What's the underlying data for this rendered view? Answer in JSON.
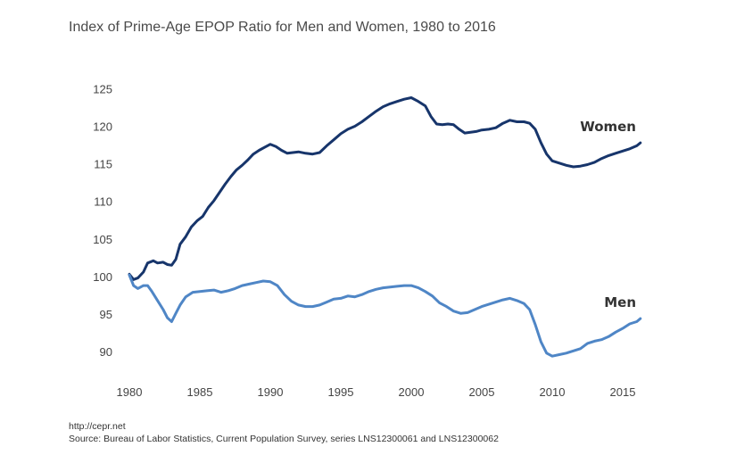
{
  "colors": {
    "women": "#17356b",
    "men": "#4f86c6",
    "text": "#444444"
  },
  "source_url": "http://cepr.net",
  "source_note": "Source:  Bureau of Labor Statistics, Current Population Survey, series LNS12300061 and LNS12300062",
  "chart_data": {
    "type": "line",
    "title": "Index of Prime-Age EPOP Ratio for Men and Women, 1980 to 2016",
    "xlabel": "",
    "ylabel": "",
    "xlim": [
      1980,
      2016.3
    ],
    "ylim": [
      88,
      126
    ],
    "x_ticks": [
      1980,
      1985,
      1990,
      1995,
      2000,
      2005,
      2010,
      2015
    ],
    "y_ticks": [
      90,
      95,
      100,
      105,
      110,
      115,
      120,
      125
    ],
    "grid": false,
    "legend": "direct labels at right end of lines",
    "series": [
      {
        "name": "Women",
        "points": [
          [
            1980.0,
            100.3
          ],
          [
            1980.3,
            99.6
          ],
          [
            1980.6,
            99.8
          ],
          [
            1981.0,
            100.6
          ],
          [
            1981.3,
            101.8
          ],
          [
            1981.7,
            102.1
          ],
          [
            1982.0,
            101.8
          ],
          [
            1982.4,
            101.9
          ],
          [
            1982.7,
            101.6
          ],
          [
            1983.0,
            101.5
          ],
          [
            1983.3,
            102.3
          ],
          [
            1983.6,
            104.3
          ],
          [
            1984.0,
            105.3
          ],
          [
            1984.4,
            106.6
          ],
          [
            1984.8,
            107.4
          ],
          [
            1985.2,
            108.0
          ],
          [
            1985.6,
            109.2
          ],
          [
            1986.0,
            110.1
          ],
          [
            1986.4,
            111.2
          ],
          [
            1986.8,
            112.3
          ],
          [
            1987.2,
            113.3
          ],
          [
            1987.6,
            114.2
          ],
          [
            1988.0,
            114.8
          ],
          [
            1988.4,
            115.5
          ],
          [
            1988.8,
            116.3
          ],
          [
            1989.2,
            116.8
          ],
          [
            1989.6,
            117.2
          ],
          [
            1990.0,
            117.6
          ],
          [
            1990.4,
            117.3
          ],
          [
            1990.8,
            116.8
          ],
          [
            1991.2,
            116.4
          ],
          [
            1991.6,
            116.5
          ],
          [
            1992.0,
            116.6
          ],
          [
            1992.5,
            116.4
          ],
          [
            1993.0,
            116.3
          ],
          [
            1993.5,
            116.5
          ],
          [
            1994.0,
            117.4
          ],
          [
            1994.5,
            118.2
          ],
          [
            1995.0,
            119.0
          ],
          [
            1995.5,
            119.6
          ],
          [
            1996.0,
            120.0
          ],
          [
            1996.5,
            120.6
          ],
          [
            1997.0,
            121.3
          ],
          [
            1997.5,
            122.0
          ],
          [
            1998.0,
            122.6
          ],
          [
            1998.5,
            123.0
          ],
          [
            1999.0,
            123.3
          ],
          [
            1999.5,
            123.6
          ],
          [
            2000.0,
            123.8
          ],
          [
            2000.5,
            123.3
          ],
          [
            2001.0,
            122.7
          ],
          [
            2001.4,
            121.3
          ],
          [
            2001.8,
            120.3
          ],
          [
            2002.2,
            120.2
          ],
          [
            2002.6,
            120.3
          ],
          [
            2003.0,
            120.2
          ],
          [
            2003.4,
            119.6
          ],
          [
            2003.8,
            119.1
          ],
          [
            2004.2,
            119.2
          ],
          [
            2004.6,
            119.3
          ],
          [
            2005.0,
            119.5
          ],
          [
            2005.5,
            119.6
          ],
          [
            2006.0,
            119.8
          ],
          [
            2006.5,
            120.4
          ],
          [
            2007.0,
            120.8
          ],
          [
            2007.5,
            120.6
          ],
          [
            2008.0,
            120.6
          ],
          [
            2008.4,
            120.4
          ],
          [
            2008.8,
            119.6
          ],
          [
            2009.2,
            117.8
          ],
          [
            2009.6,
            116.3
          ],
          [
            2010.0,
            115.4
          ],
          [
            2010.5,
            115.1
          ],
          [
            2011.0,
            114.8
          ],
          [
            2011.5,
            114.6
          ],
          [
            2012.0,
            114.7
          ],
          [
            2012.5,
            114.9
          ],
          [
            2013.0,
            115.2
          ],
          [
            2013.5,
            115.7
          ],
          [
            2014.0,
            116.1
          ],
          [
            2014.5,
            116.4
          ],
          [
            2015.0,
            116.7
          ],
          [
            2015.5,
            117.0
          ],
          [
            2016.0,
            117.4
          ],
          [
            2016.25,
            117.8
          ]
        ]
      },
      {
        "name": "Men",
        "points": [
          [
            1980.0,
            100.2
          ],
          [
            1980.3,
            98.8
          ],
          [
            1980.6,
            98.4
          ],
          [
            1981.0,
            98.8
          ],
          [
            1981.3,
            98.8
          ],
          [
            1981.6,
            98.0
          ],
          [
            1982.0,
            96.8
          ],
          [
            1982.4,
            95.6
          ],
          [
            1982.7,
            94.5
          ],
          [
            1983.0,
            94.0
          ],
          [
            1983.3,
            95.1
          ],
          [
            1983.6,
            96.2
          ],
          [
            1984.0,
            97.3
          ],
          [
            1984.5,
            97.9
          ],
          [
            1985.0,
            98.0
          ],
          [
            1985.5,
            98.1
          ],
          [
            1986.0,
            98.2
          ],
          [
            1986.5,
            97.9
          ],
          [
            1987.0,
            98.1
          ],
          [
            1987.5,
            98.4
          ],
          [
            1988.0,
            98.8
          ],
          [
            1988.5,
            99.0
          ],
          [
            1989.0,
            99.2
          ],
          [
            1989.5,
            99.4
          ],
          [
            1990.0,
            99.3
          ],
          [
            1990.5,
            98.8
          ],
          [
            1991.0,
            97.6
          ],
          [
            1991.5,
            96.7
          ],
          [
            1992.0,
            96.2
          ],
          [
            1992.5,
            96.0
          ],
          [
            1993.0,
            96.0
          ],
          [
            1993.5,
            96.2
          ],
          [
            1994.0,
            96.6
          ],
          [
            1994.5,
            97.0
          ],
          [
            1995.0,
            97.1
          ],
          [
            1995.5,
            97.4
          ],
          [
            1996.0,
            97.3
          ],
          [
            1996.5,
            97.6
          ],
          [
            1997.0,
            98.0
          ],
          [
            1997.5,
            98.3
          ],
          [
            1998.0,
            98.5
          ],
          [
            1998.5,
            98.6
          ],
          [
            1999.0,
            98.7
          ],
          [
            1999.5,
            98.8
          ],
          [
            2000.0,
            98.8
          ],
          [
            2000.5,
            98.5
          ],
          [
            2001.0,
            98.0
          ],
          [
            2001.5,
            97.4
          ],
          [
            2002.0,
            96.5
          ],
          [
            2002.5,
            96.0
          ],
          [
            2003.0,
            95.4
          ],
          [
            2003.5,
            95.1
          ],
          [
            2004.0,
            95.2
          ],
          [
            2004.5,
            95.6
          ],
          [
            2005.0,
            96.0
          ],
          [
            2005.5,
            96.3
          ],
          [
            2006.0,
            96.6
          ],
          [
            2006.5,
            96.9
          ],
          [
            2007.0,
            97.1
          ],
          [
            2007.5,
            96.8
          ],
          [
            2008.0,
            96.4
          ],
          [
            2008.4,
            95.6
          ],
          [
            2008.8,
            93.6
          ],
          [
            2009.2,
            91.3
          ],
          [
            2009.6,
            89.8
          ],
          [
            2010.0,
            89.4
          ],
          [
            2010.5,
            89.6
          ],
          [
            2011.0,
            89.8
          ],
          [
            2011.5,
            90.1
          ],
          [
            2012.0,
            90.4
          ],
          [
            2012.5,
            91.1
          ],
          [
            2013.0,
            91.4
          ],
          [
            2013.5,
            91.6
          ],
          [
            2014.0,
            92.0
          ],
          [
            2014.5,
            92.6
          ],
          [
            2015.0,
            93.1
          ],
          [
            2015.5,
            93.7
          ],
          [
            2016.0,
            94.0
          ],
          [
            2016.25,
            94.4
          ]
        ]
      }
    ]
  }
}
